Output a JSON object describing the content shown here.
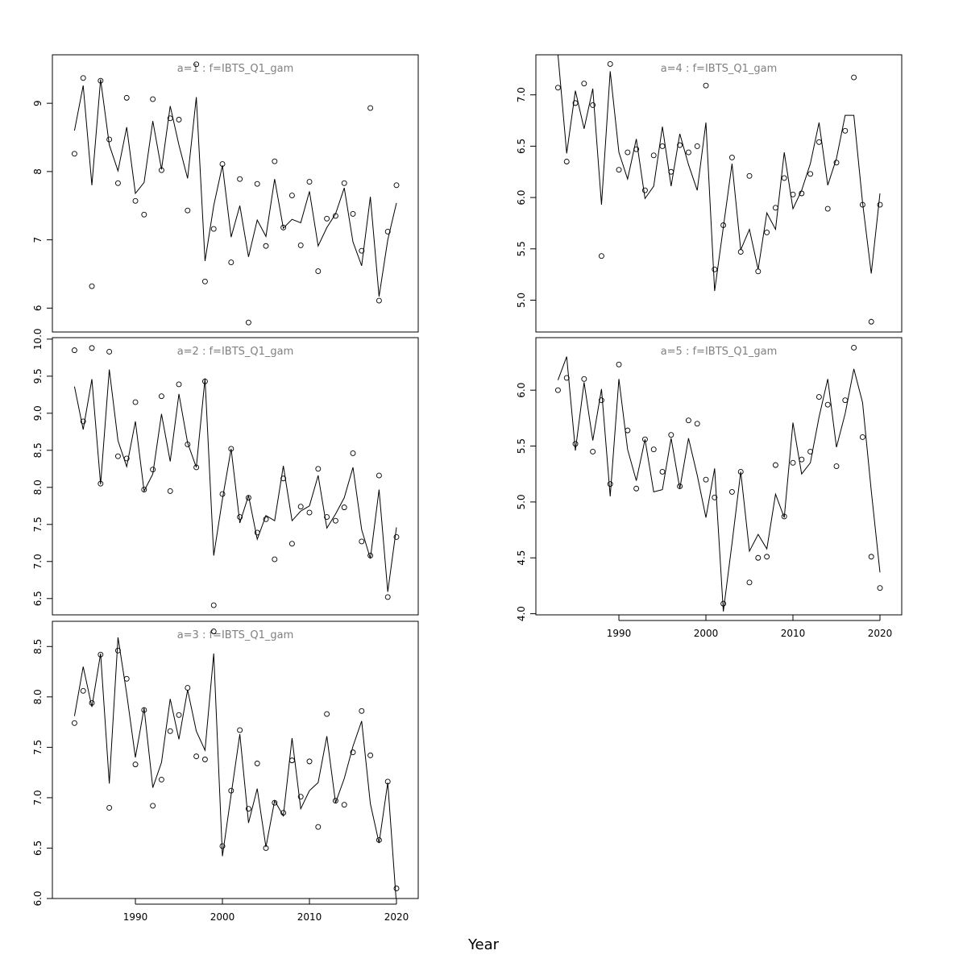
{
  "xlabel": "Year",
  "chart_data": [
    {
      "type": "line",
      "title": "a=1  :  f=IBTS_Q1_gam",
      "x": [
        1983,
        1984,
        1985,
        1986,
        1987,
        1988,
        1989,
        1990,
        1991,
        1992,
        1993,
        1994,
        1995,
        1996,
        1997,
        1998,
        1999,
        2000,
        2001,
        2002,
        2003,
        2004,
        2005,
        2006,
        2007,
        2008,
        2009,
        2010,
        2011,
        2012,
        2013,
        2014,
        2015,
        2016,
        2017,
        2018,
        2019,
        2020
      ],
      "xlim": [
        1980.46,
        2022.5
      ],
      "ylim": [
        5.65,
        9.71
      ],
      "yticks": [
        6,
        7,
        8,
        9
      ],
      "series": [
        {
          "style": "points",
          "color": "#000000",
          "values": [
            8.26,
            9.37,
            6.32,
            9.33,
            8.47,
            7.83,
            9.08,
            7.57,
            7.37,
            9.06,
            8.02,
            8.78,
            8.76,
            7.43,
            9.57,
            6.39,
            7.16,
            8.11,
            6.67,
            7.89,
            5.79,
            7.82,
            6.91,
            8.15,
            7.18,
            7.65,
            6.92,
            7.85,
            6.54,
            7.31,
            7.35,
            7.83,
            7.38,
            6.84,
            8.93,
            6.11,
            7.12,
            7.8
          ]
        },
        {
          "style": "line",
          "color": "#000000",
          "values": [
            8.6,
            9.26,
            7.8,
            9.35,
            8.39,
            8.01,
            8.65,
            7.68,
            7.84,
            8.74,
            8.03,
            8.96,
            8.39,
            7.9,
            9.09,
            6.69,
            7.5,
            8.09,
            7.04,
            7.5,
            6.75,
            7.29,
            7.05,
            7.89,
            7.17,
            7.3,
            7.25,
            7.71,
            6.91,
            7.18,
            7.38,
            7.76,
            6.97,
            6.62,
            7.63,
            6.17,
            7.0,
            7.54
          ]
        }
      ]
    },
    {
      "type": "line",
      "title": "a=2  :  f=IBTS_Q1_gam",
      "x": [
        1983,
        1984,
        1985,
        1986,
        1987,
        1988,
        1989,
        1990,
        1991,
        1992,
        1993,
        1994,
        1995,
        1996,
        1997,
        1998,
        1999,
        2000,
        2001,
        2002,
        2003,
        2004,
        2005,
        2006,
        2007,
        2008,
        2009,
        2010,
        2011,
        2012,
        2013,
        2014,
        2015,
        2016,
        2017,
        2018,
        2019,
        2020
      ],
      "xlim": [
        1980.46,
        2022.5
      ],
      "ylim": [
        6.28,
        10.02
      ],
      "yticks": [
        {
          "value": 10,
          "label": "10.0"
        },
        9.5,
        {
          "value": 9,
          "label": "9.0"
        },
        8.5,
        {
          "value": 8,
          "label": "8.0"
        },
        7.5,
        {
          "value": 7,
          "label": "7.0"
        },
        6.5
      ],
      "series": [
        {
          "style": "points",
          "color": "#000000",
          "values": [
            9.85,
            8.89,
            9.88,
            8.05,
            9.83,
            8.42,
            8.39,
            9.15,
            7.97,
            8.24,
            9.23,
            7.95,
            9.39,
            8.58,
            8.27,
            9.43,
            6.41,
            7.91,
            8.52,
            7.6,
            7.86,
            7.39,
            7.57,
            7.03,
            8.12,
            7.24,
            7.74,
            7.66,
            8.25,
            7.6,
            7.55,
            7.73,
            8.46,
            7.27,
            7.08,
            8.16,
            6.52,
            7.33
          ]
        },
        {
          "style": "line",
          "color": "#000000",
          "values": [
            9.36,
            8.78,
            9.46,
            8.04,
            9.59,
            8.63,
            8.28,
            8.89,
            7.95,
            8.18,
            8.99,
            8.35,
            9.26,
            8.6,
            8.27,
            9.47,
            7.08,
            7.84,
            8.52,
            7.52,
            7.89,
            7.3,
            7.62,
            7.55,
            8.29,
            7.55,
            7.68,
            7.75,
            8.16,
            7.45,
            7.64,
            7.86,
            8.27,
            7.43,
            7.04,
            7.97,
            6.59,
            7.46
          ]
        }
      ]
    },
    {
      "type": "line",
      "title": "a=3  :  f=IBTS_Q1_gam",
      "x": [
        1983,
        1984,
        1985,
        1986,
        1987,
        1988,
        1989,
        1990,
        1991,
        1992,
        1993,
        1994,
        1995,
        1996,
        1997,
        1998,
        1999,
        2000,
        2001,
        2002,
        2003,
        2004,
        2005,
        2006,
        2007,
        2008,
        2009,
        2010,
        2011,
        2012,
        2013,
        2014,
        2015,
        2016,
        2017,
        2018,
        2019,
        2020
      ],
      "xlim": [
        1980.46,
        2022.5
      ],
      "xticks": [
        1990,
        2000,
        2010,
        2020
      ],
      "ylim": [
        6.0,
        8.75
      ],
      "yticks": [
        8.5,
        {
          "value": 8,
          "label": "8.0"
        },
        7.5,
        {
          "value": 7,
          "label": "7.0"
        },
        6.5,
        {
          "value": 6,
          "label": "6.0"
        }
      ],
      "series": [
        {
          "style": "points",
          "color": "#000000",
          "values": [
            7.74,
            8.06,
            7.94,
            8.42,
            6.9,
            8.46,
            8.18,
            7.33,
            7.87,
            6.92,
            7.18,
            7.66,
            7.82,
            8.09,
            7.41,
            7.38,
            8.65,
            6.52,
            7.07,
            7.67,
            6.89,
            7.34,
            6.5,
            6.95,
            6.85,
            7.37,
            7.01,
            7.36,
            6.71,
            7.83,
            6.97,
            6.93,
            7.45,
            7.86,
            7.42,
            6.58,
            7.16,
            6.1
          ]
        },
        {
          "style": "line",
          "color": "#000000",
          "values": [
            7.81,
            8.3,
            7.9,
            8.43,
            7.14,
            8.59,
            8.03,
            7.4,
            7.89,
            7.1,
            7.35,
            7.98,
            7.58,
            8.07,
            7.66,
            7.47,
            8.43,
            6.42,
            7.03,
            7.63,
            6.75,
            7.09,
            6.51,
            6.97,
            6.82,
            7.59,
            6.89,
            7.07,
            7.15,
            7.61,
            6.95,
            7.19,
            7.51,
            7.76,
            6.94,
            6.55,
            7.15,
            5.94
          ]
        }
      ]
    },
    {
      "type": "line",
      "title": "a=4  :  f=IBTS_Q1_gam",
      "x": [
        1983,
        1984,
        1985,
        1986,
        1987,
        1988,
        1989,
        1990,
        1991,
        1992,
        1993,
        1994,
        1995,
        1996,
        1997,
        1998,
        1999,
        2000,
        2001,
        2002,
        2003,
        2004,
        2005,
        2006,
        2007,
        2008,
        2009,
        2010,
        2011,
        2012,
        2013,
        2014,
        2015,
        2016,
        2017,
        2018,
        2019,
        2020
      ],
      "xlim": [
        1980.46,
        2022.5
      ],
      "ylim": [
        4.69,
        7.39
      ],
      "yticks": [
        {
          "value": 7,
          "label": "7.0"
        },
        6.5,
        {
          "value": 6,
          "label": "6.0"
        },
        5.5,
        {
          "value": 5,
          "label": "5.0"
        }
      ],
      "series": [
        {
          "style": "points",
          "color": "#000000",
          "values": [
            7.07,
            6.35,
            6.92,
            7.11,
            6.9,
            5.43,
            7.3,
            6.27,
            6.44,
            6.47,
            6.07,
            6.41,
            6.5,
            6.25,
            6.51,
            6.44,
            6.5,
            7.09,
            5.3,
            5.73,
            6.39,
            5.47,
            6.21,
            5.28,
            5.66,
            5.9,
            6.19,
            6.03,
            6.04,
            6.23,
            6.54,
            5.89,
            6.34,
            6.65,
            7.17,
            5.93,
            4.79,
            5.93
          ]
        },
        {
          "style": "line",
          "color": "#000000",
          "values": [
            7.39,
            6.43,
            7.04,
            6.67,
            7.06,
            5.93,
            7.23,
            6.44,
            6.18,
            6.57,
            5.99,
            6.11,
            6.69,
            6.11,
            6.62,
            6.32,
            6.07,
            6.73,
            5.09,
            5.71,
            6.33,
            5.49,
            5.69,
            5.3,
            5.85,
            5.69,
            6.44,
            5.89,
            6.07,
            6.33,
            6.73,
            6.12,
            6.38,
            6.8,
            6.8,
            5.95,
            5.26,
            6.04
          ]
        }
      ]
    },
    {
      "type": "line",
      "title": "a=5  :  f=IBTS_Q1_gam",
      "x": [
        1983,
        1984,
        1985,
        1986,
        1987,
        1988,
        1989,
        1990,
        1991,
        1992,
        1993,
        1994,
        1995,
        1996,
        1997,
        1998,
        1999,
        2000,
        2001,
        2002,
        2003,
        2004,
        2005,
        2006,
        2007,
        2008,
        2009,
        2010,
        2011,
        2012,
        2013,
        2014,
        2015,
        2016,
        2017,
        2018,
        2019,
        2020
      ],
      "xlim": [
        1980.46,
        2022.5
      ],
      "xticks": [
        1990,
        2000,
        2010,
        2020
      ],
      "ylim": [
        3.99,
        6.47
      ],
      "yticks": [
        {
          "value": 6,
          "label": "6.0"
        },
        5.5,
        {
          "value": 5,
          "label": "5.0"
        },
        4.5,
        {
          "value": 4,
          "label": "4.0"
        }
      ],
      "series": [
        {
          "style": "points",
          "color": "#000000",
          "values": [
            6.0,
            6.11,
            5.52,
            6.1,
            5.45,
            5.91,
            5.16,
            6.23,
            5.64,
            5.12,
            5.56,
            5.47,
            5.27,
            5.6,
            5.14,
            5.73,
            5.7,
            5.2,
            5.04,
            4.09,
            5.09,
            5.27,
            4.28,
            4.5,
            4.51,
            5.33,
            4.87,
            5.35,
            5.38,
            5.45,
            5.94,
            5.87,
            5.32,
            5.91,
            6.38,
            5.58,
            4.51,
            4.23
          ]
        },
        {
          "style": "line",
          "color": "#000000",
          "values": [
            6.09,
            6.3,
            5.46,
            6.07,
            5.55,
            6.01,
            5.05,
            6.1,
            5.47,
            5.19,
            5.56,
            5.09,
            5.11,
            5.57,
            5.12,
            5.57,
            5.24,
            4.86,
            5.3,
            4.02,
            4.63,
            5.27,
            4.56,
            4.71,
            4.58,
            5.07,
            4.86,
            5.71,
            5.25,
            5.35,
            5.76,
            6.1,
            5.49,
            5.79,
            6.19,
            5.89,
            5.1,
            4.37
          ]
        }
      ]
    }
  ]
}
